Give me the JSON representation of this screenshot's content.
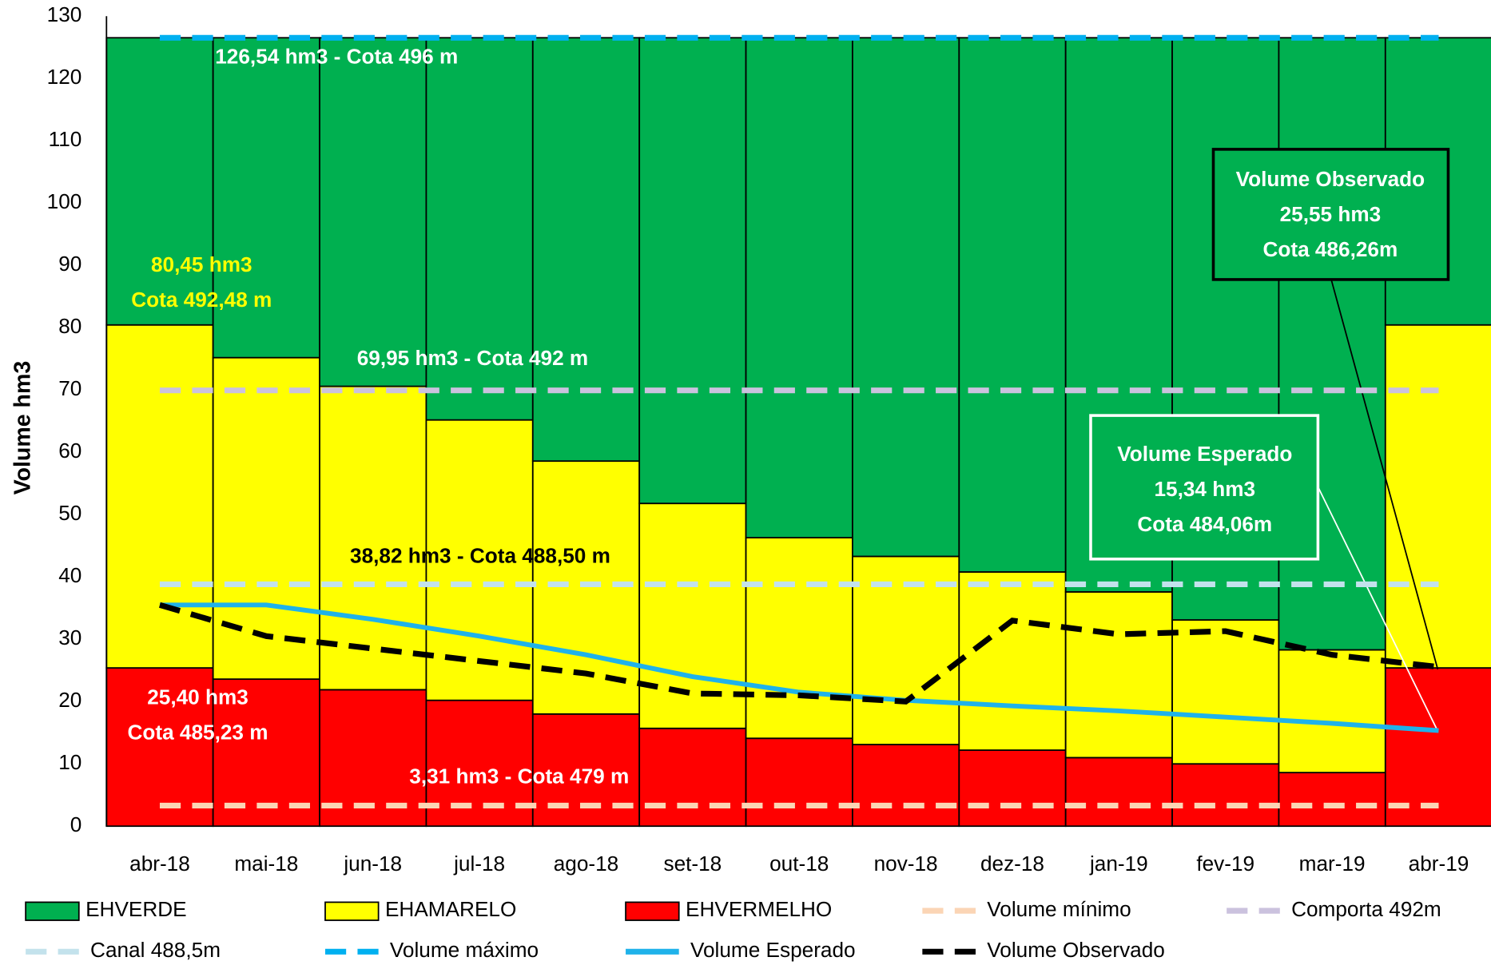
{
  "chart_data": {
    "type": "bar",
    "stacked": true,
    "y_label": "Volume hm3",
    "categories": [
      "abr-18",
      "mai-18",
      "jun-18",
      "jul-18",
      "ago-18",
      "set-18",
      "out-18",
      "nov-18",
      "dez-18",
      "jan-19",
      "fev-19",
      "mar-19",
      "abr-19"
    ],
    "ylim": [
      0,
      130
    ],
    "yticks": [
      0,
      10,
      20,
      30,
      40,
      50,
      60,
      70,
      80,
      90,
      100,
      110,
      120,
      130
    ],
    "grid": false,
    "series": [
      {
        "name": "EHVERDE",
        "kind": "bar",
        "color": "#00b050",
        "values": [
          46.09,
          51.34,
          55.94,
          61.34,
          67.94,
          74.74,
          80.24,
          83.24,
          85.74,
          88.94,
          93.44,
          98.24,
          46.09
        ]
      },
      {
        "name": "EHAMARELO",
        "kind": "bar",
        "color": "#ffff00",
        "values": [
          55.05,
          51.6,
          48.7,
          45.0,
          40.6,
          36.1,
          32.2,
          30.2,
          28.6,
          26.6,
          23.1,
          19.7,
          55.05
        ]
      },
      {
        "name": "EHVERMELHO",
        "kind": "bar",
        "color": "#ff0000",
        "values": [
          25.4,
          23.6,
          21.9,
          20.2,
          18.0,
          15.7,
          14.1,
          13.1,
          12.2,
          11.0,
          10.0,
          8.6,
          25.4
        ]
      },
      {
        "name": "Volume mínimo",
        "kind": "line",
        "dashed": true,
        "color": "#fbd5b5",
        "values": [
          3.31,
          3.31,
          3.31,
          3.31,
          3.31,
          3.31,
          3.31,
          3.31,
          3.31,
          3.31,
          3.31,
          3.31,
          3.31
        ]
      },
      {
        "name": "Comporta 492m",
        "kind": "line",
        "dashed": true,
        "color": "#cbc2de",
        "values": [
          69.95,
          69.95,
          69.95,
          69.95,
          69.95,
          69.95,
          69.95,
          69.95,
          69.95,
          69.95,
          69.95,
          69.95,
          69.95
        ]
      },
      {
        "name": "Canal 488,5m",
        "kind": "line",
        "dashed": true,
        "color": "#c3e2ec",
        "values": [
          38.82,
          38.82,
          38.82,
          38.82,
          38.82,
          38.82,
          38.82,
          38.82,
          38.82,
          38.82,
          38.82,
          38.82,
          38.82
        ]
      },
      {
        "name": "Volume máximo",
        "kind": "line",
        "dashed": true,
        "color": "#00b0f0",
        "values": [
          126.54,
          126.54,
          126.54,
          126.54,
          126.54,
          126.54,
          126.54,
          126.54,
          126.54,
          126.54,
          126.54,
          126.54,
          126.54
        ]
      },
      {
        "name": "Volume Esperado",
        "kind": "line",
        "dashed": false,
        "color": "#1fb2ea",
        "values": [
          35.5,
          35.5,
          33.2,
          30.5,
          27.5,
          24.0,
          21.5,
          20.2,
          19.3,
          18.5,
          17.5,
          16.5,
          15.34
        ]
      },
      {
        "name": "Volume Observado",
        "kind": "line",
        "dashed": true,
        "color": "#000000",
        "values": [
          35.5,
          30.5,
          28.5,
          26.5,
          24.5,
          21.3,
          21.0,
          20.0,
          33.0,
          30.8,
          31.3,
          27.5,
          25.55
        ]
      }
    ],
    "annotations": [
      {
        "lines": [
          "126,54  hm3 - Cota 496 m"
        ],
        "color": "#ffffff"
      },
      {
        "lines": [
          "80,45  hm3",
          "Cota 492,48 m"
        ],
        "color": "#ffff00"
      },
      {
        "lines": [
          "69,95 hm3 - Cota 492 m"
        ],
        "color": "#ffffff"
      },
      {
        "lines": [
          "38,82 hm3 - Cota 488,50 m"
        ],
        "color": "#000000"
      },
      {
        "lines": [
          "25,40  hm3",
          "Cota 485,23 m"
        ],
        "color": "#ffffff"
      },
      {
        "lines": [
          "3,31 hm3 - Cota 479 m"
        ],
        "color": "#ffffff"
      },
      {
        "lines": [
          "Volume Observado",
          "25,55 hm3",
          "Cota 486,26m"
        ],
        "color": "#ffffff"
      },
      {
        "lines": [
          "Volume Esperado",
          "15,34 hm3",
          "Cota 484,06m"
        ],
        "color": "#ffffff"
      }
    ]
  }
}
